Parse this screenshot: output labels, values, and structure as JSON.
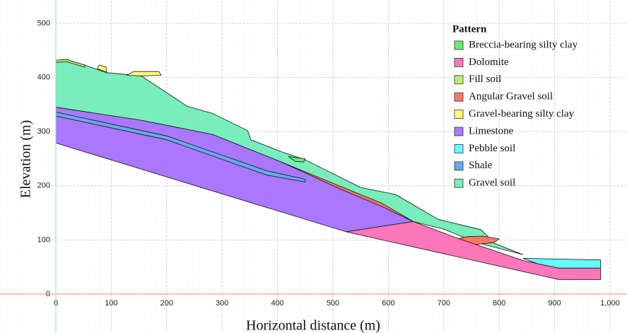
{
  "chart_data": {
    "type": "area",
    "x_label": "Horizontal distance (m)",
    "y_label": "Elevation (m)",
    "legend_title": "Pattern",
    "legend_position": "upper right",
    "grid": true,
    "xlim": [
      -20,
      1030
    ],
    "ylim": [
      -70,
      540
    ],
    "xticks": [
      0,
      100,
      200,
      300,
      400,
      500,
      600,
      700,
      800,
      900,
      {
        "value": 1000,
        "label": "1,000"
      }
    ],
    "yticks": [
      0,
      100,
      200,
      300,
      400,
      500
    ],
    "series": [
      {
        "name": "Breccia-bearing silty clay",
        "color": "#66ee77",
        "polygons": [
          {
            "x": [
              420,
              435,
              450,
              447,
              432
            ],
            "y": [
              254,
              252,
              250,
              244,
              245
            ]
          }
        ]
      },
      {
        "name": "Dolomite",
        "color": "#ff77bb",
        "polygons": [
          {
            "x": [
              524,
              645,
              720,
              843,
              907,
              983,
              983,
              907
            ],
            "y": [
              115,
              134,
              105,
              62,
              48,
              48,
              27,
              27
            ]
          }
        ]
      },
      {
        "name": "Fill soil",
        "color": "#bbee77",
        "polygons": [
          {
            "x": [
              0,
              20,
              52,
              52,
              20,
              0
            ],
            "y": [
              432,
              433,
              423,
              419,
              429,
              428
            ]
          }
        ]
      },
      {
        "name": "Angular Gravel soil",
        "color": "#ff7766",
        "polygons": [
          {
            "x": [
              409,
              511,
              588,
              645,
              588,
              511
            ],
            "y": [
              243,
              200,
              168,
              134,
              162,
              195
            ]
          },
          {
            "x": [
              718,
              740,
              770,
              800,
              790,
              760,
              730
            ],
            "y": [
              100,
              106,
              107,
              102,
              95,
              92,
              94
            ]
          }
        ]
      },
      {
        "name": "Gravel-bearing silty clay",
        "color": "#ffff77",
        "polygons": [
          {
            "x": [
              75,
              91,
              91,
              78
            ],
            "y": [
              416,
              410,
              419,
              423
            ]
          },
          {
            "x": [
              128,
              154,
              190,
              186,
              140
            ],
            "y": [
              404,
              403,
              404,
              411,
              411
            ]
          }
        ]
      },
      {
        "name": "Limestone",
        "color": "#aa77ff",
        "polygons": [
          {
            "x": [
              0,
              154,
              282,
              409,
              511,
              588,
              645,
              524,
              0
            ],
            "y": [
              345,
              321,
              295,
              243,
              197,
              164,
              134,
              115,
              279
            ]
          }
        ]
      },
      {
        "name": "Pebble soil",
        "color": "#66ffff",
        "polygons": [
          {
            "x": [
              843,
              983,
              983,
              907,
              870
            ],
            "y": [
              66,
              63,
              48,
              48,
              56
            ]
          }
        ]
      },
      {
        "name": "Shale",
        "color": "#66aaee",
        "polygons": [
          {
            "x": [
              0,
              200,
              380,
              450,
              450,
              380,
              200,
              0
            ],
            "y": [
              336,
              292,
              228,
              212,
              207,
              220,
              285,
              329
            ]
          }
        ]
      },
      {
        "name": "Gravel soil",
        "color": "#77eebb",
        "polygons": [
          {
            "x": [
              0,
              0,
              20,
              52,
              91,
              154,
              237,
              282,
              346,
              352,
              409,
              448,
              499,
              550,
              613,
              690,
              767,
              793,
              843,
              760,
              700,
              645,
              588,
              511,
              409,
              282,
              154
            ],
            "y": [
              345,
              432,
              433,
              423,
              409,
              403,
              347,
              334,
              302,
              285,
              262,
              249,
              223,
              197,
              184,
              138,
              119,
              93,
              73,
              95,
              120,
              134,
              164,
              197,
              243,
              295,
              321
            ]
          }
        ]
      }
    ],
    "draw_order": [
      8,
      5,
      7,
      3,
      1,
      6,
      0,
      2,
      4
    ]
  }
}
